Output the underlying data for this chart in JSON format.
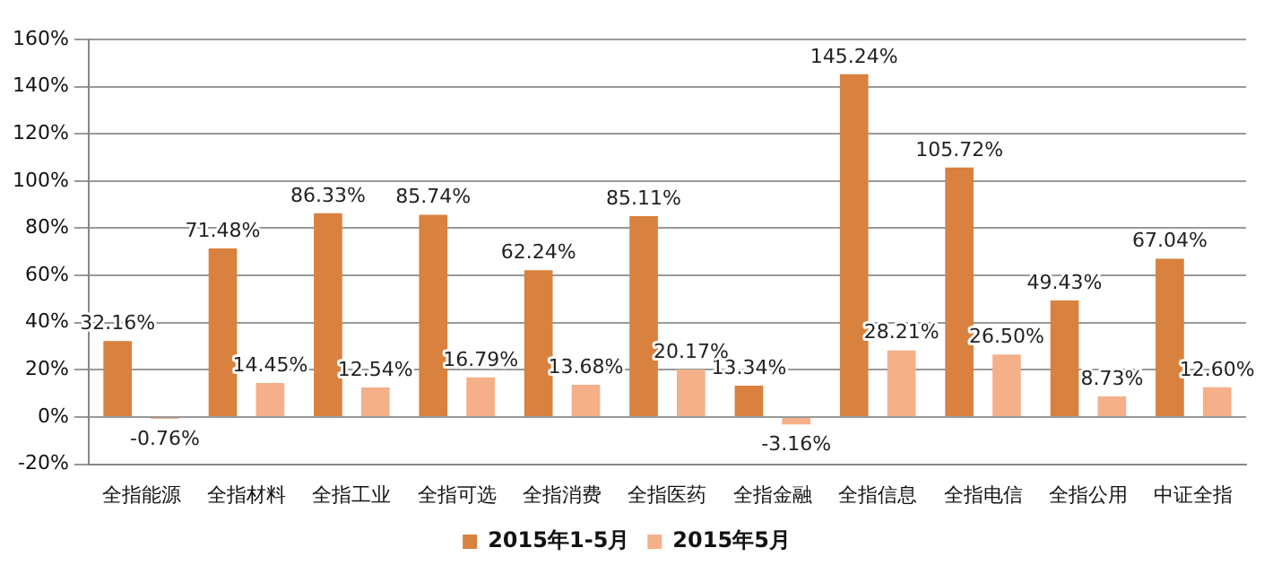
{
  "chart_data": {
    "type": "bar",
    "categories": [
      "全指能源",
      "全指材料",
      "全指工业",
      "全指可选",
      "全指消费",
      "全指医药",
      "全指金融",
      "全指信息",
      "全指电信",
      "全指公用",
      "中证全指"
    ],
    "series": [
      {
        "name": "2015年1-5月",
        "color": "#d9813e",
        "values": [
          32.16,
          71.48,
          86.33,
          85.74,
          62.24,
          85.11,
          13.34,
          145.24,
          105.72,
          49.43,
          67.04
        ],
        "value_labels": [
          "32.16%",
          "71.48%",
          "86.33%",
          "85.74%",
          "62.24%",
          "85.11%",
          "13.34%",
          "145.24%",
          "105.72%",
          "49.43%",
          "67.04%"
        ]
      },
      {
        "name": "2015年5月",
        "color": "#f5b08a",
        "values": [
          -0.76,
          14.45,
          12.54,
          16.79,
          13.68,
          20.17,
          -3.16,
          28.21,
          26.5,
          8.73,
          12.6
        ],
        "value_labels": [
          "-0.76%",
          "14.45%",
          "12.54%",
          "16.79%",
          "13.68%",
          "20.17%",
          "-3.16%",
          "28.21%",
          "26.50%",
          "8.73%",
          "12.60%"
        ]
      }
    ],
    "ylim": [
      -20,
      160
    ],
    "yticks": [
      {
        "value": -20,
        "label": "-20%"
      },
      {
        "value": 0,
        "label": "0%"
      },
      {
        "value": 20,
        "label": "20%"
      },
      {
        "value": 40,
        "label": "40%"
      },
      {
        "value": 60,
        "label": "60%"
      },
      {
        "value": 80,
        "label": "80%"
      },
      {
        "value": 100,
        "label": "100%"
      },
      {
        "value": 120,
        "label": "120%"
      },
      {
        "value": 140,
        "label": "140%"
      },
      {
        "value": 160,
        "label": "160%"
      }
    ],
    "grid": "y",
    "legend": "bottom"
  }
}
